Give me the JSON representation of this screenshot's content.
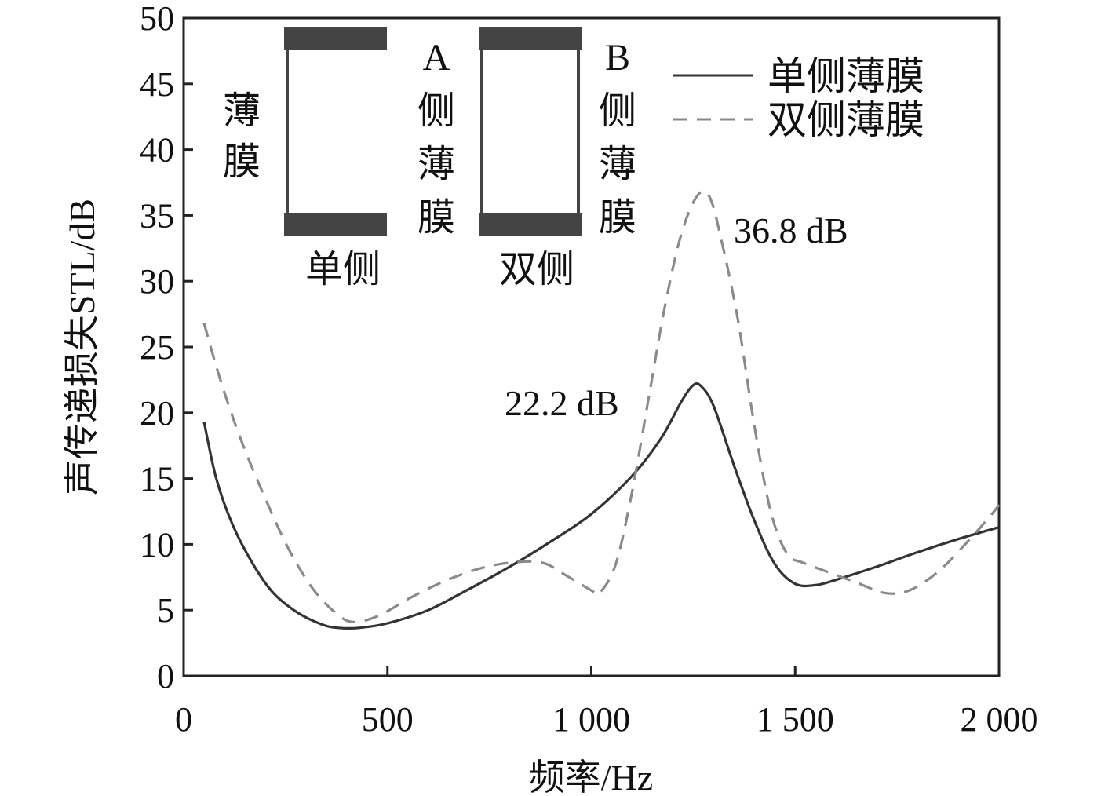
{
  "chart_data": {
    "type": "line",
    "xlabel": "频率/Hz",
    "ylabel": "声传递损失STL/dB",
    "xlim": [
      0,
      2000
    ],
    "ylim": [
      0,
      50
    ],
    "xticks": [
      0,
      500,
      1000,
      1500,
      2000
    ],
    "xtick_labels": [
      "0",
      "500",
      "1 000",
      "1 500",
      "2 000"
    ],
    "yticks": [
      0,
      5,
      10,
      15,
      20,
      25,
      30,
      35,
      40,
      45,
      50
    ],
    "ytick_labels": [
      "0",
      "5",
      "10",
      "15",
      "20",
      "25",
      "30",
      "35",
      "40",
      "45",
      "50"
    ],
    "grid": false,
    "legend": "top-right",
    "series": [
      {
        "name": "单侧薄膜",
        "style": "solid",
        "color": "#333333",
        "points": [
          [
            50,
            19.3
          ],
          [
            80,
            15
          ],
          [
            120,
            11.5
          ],
          [
            170,
            8.5
          ],
          [
            220,
            6.3
          ],
          [
            280,
            4.8
          ],
          [
            340,
            3.9
          ],
          [
            380,
            3.65
          ],
          [
            430,
            3.65
          ],
          [
            500,
            4.0
          ],
          [
            600,
            5.0
          ],
          [
            700,
            6.6
          ],
          [
            800,
            8.3
          ],
          [
            900,
            10.2
          ],
          [
            1000,
            12.3
          ],
          [
            1100,
            15.2
          ],
          [
            1170,
            18.0
          ],
          [
            1220,
            20.8
          ],
          [
            1250,
            22.1
          ],
          [
            1270,
            22.0
          ],
          [
            1300,
            20.5
          ],
          [
            1350,
            16.0
          ],
          [
            1400,
            11.8
          ],
          [
            1450,
            8.5
          ],
          [
            1500,
            7.0
          ],
          [
            1550,
            6.9
          ],
          [
            1600,
            7.3
          ],
          [
            1700,
            8.3
          ],
          [
            1800,
            9.4
          ],
          [
            1900,
            10.4
          ],
          [
            2000,
            11.3
          ]
        ]
      },
      {
        "name": "双侧薄膜",
        "style": "dashed",
        "color": "#8a8a8a",
        "points": [
          [
            50,
            26.8
          ],
          [
            90,
            22.5
          ],
          [
            140,
            18
          ],
          [
            200,
            13.5
          ],
          [
            260,
            9.5
          ],
          [
            320,
            6.5
          ],
          [
            380,
            4.6
          ],
          [
            420,
            4.1
          ],
          [
            480,
            4.6
          ],
          [
            560,
            6.0
          ],
          [
            640,
            7.2
          ],
          [
            720,
            8.1
          ],
          [
            800,
            8.6
          ],
          [
            880,
            8.6
          ],
          [
            940,
            7.6
          ],
          [
            1000,
            6.5
          ],
          [
            1020,
            6.3
          ],
          [
            1060,
            8.5
          ],
          [
            1100,
            14.0
          ],
          [
            1140,
            21.0
          ],
          [
            1180,
            28.0
          ],
          [
            1220,
            33.5
          ],
          [
            1260,
            36.5
          ],
          [
            1290,
            36.4
          ],
          [
            1320,
            33.0
          ],
          [
            1360,
            27.0
          ],
          [
            1400,
            19.0
          ],
          [
            1440,
            12.5
          ],
          [
            1480,
            9.3
          ],
          [
            1520,
            8.6
          ],
          [
            1580,
            7.9
          ],
          [
            1650,
            7.1
          ],
          [
            1720,
            6.3
          ],
          [
            1780,
            6.5
          ],
          [
            1850,
            7.9
          ],
          [
            1920,
            10.1
          ],
          [
            1980,
            12.2
          ],
          [
            2000,
            13.0
          ]
        ]
      }
    ],
    "annotations": [
      {
        "text": "36.8 dB"
      },
      {
        "text": "22.2 dB"
      }
    ],
    "inset": {
      "left": {
        "side_label": "薄膜",
        "caption": "单侧",
        "right_label": "A侧薄膜"
      },
      "right": {
        "caption": "双侧",
        "right_label": "B侧薄膜"
      }
    }
  }
}
